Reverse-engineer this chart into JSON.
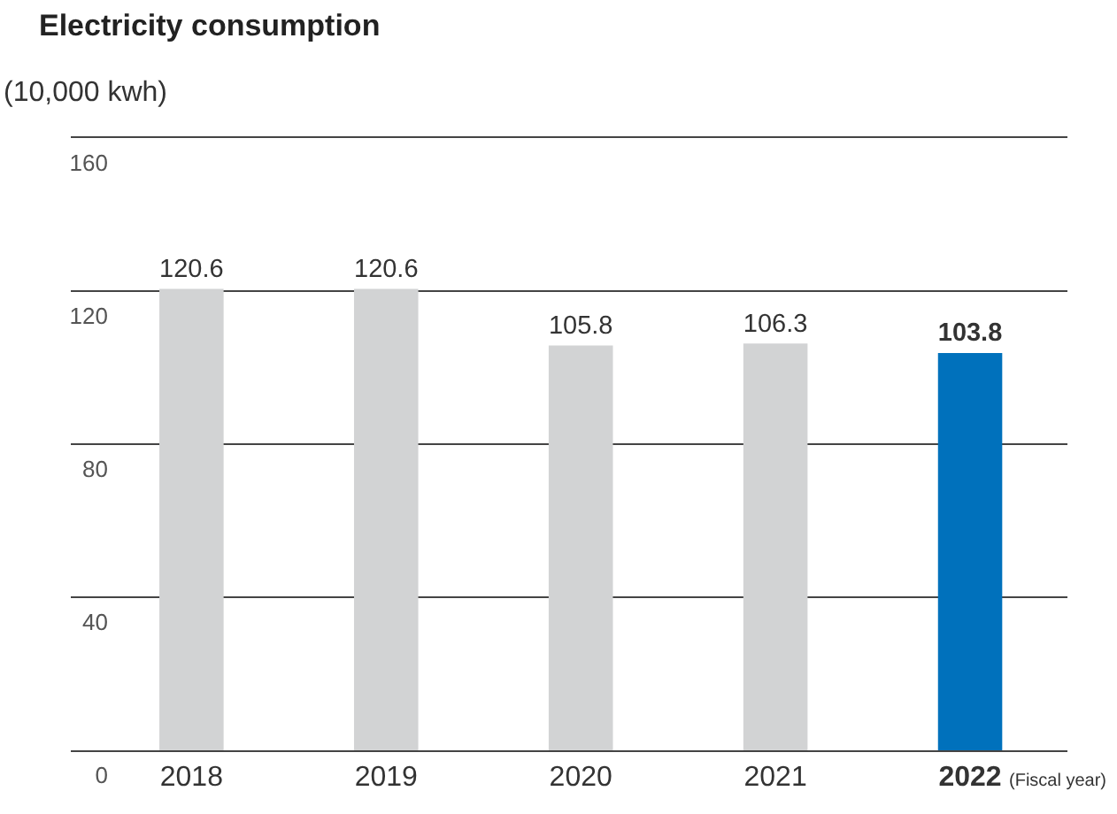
{
  "chart_data": {
    "type": "bar",
    "title": "Electricity consumption",
    "ylabel": "(10,000 kwh)",
    "xlabel": "(Fiscal year)",
    "categories": [
      "2018",
      "2019",
      "2020",
      "2021",
      "2022"
    ],
    "values": [
      120.6,
      120.6,
      105.8,
      106.3,
      103.8
    ],
    "colors": [
      "#d2d3d4",
      "#d2d3d4",
      "#d2d3d4",
      "#d2d3d4",
      "#0071bc"
    ],
    "data_labels": true,
    "ylim": [
      0,
      160
    ],
    "yticks": [
      0,
      40,
      80,
      120,
      160
    ],
    "grid": "y",
    "legend": false
  }
}
